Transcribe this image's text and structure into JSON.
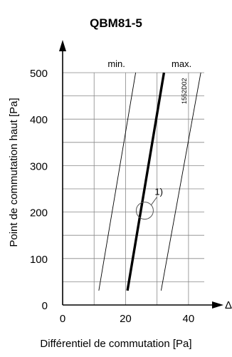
{
  "chart_data": {
    "type": "line",
    "title": "QBM81-5",
    "xlabel": "Différentiel de commutation [Pa]",
    "ylabel": "Point de commutation haut  [Pa]",
    "x_axis_symbol": "Δp",
    "xlim": [
      0,
      45
    ],
    "ylim": [
      0,
      500
    ],
    "xticks": [
      "0",
      "20",
      "40"
    ],
    "yticks": [
      "0",
      "100",
      "200",
      "300",
      "400",
      "500"
    ],
    "x_grid": [
      0,
      10,
      20,
      30,
      40
    ],
    "y_grid": [
      0,
      50,
      100,
      150,
      200,
      250,
      300,
      350,
      400,
      450,
      500
    ],
    "grid": true,
    "series": [
      {
        "name": "min.",
        "style": "thin",
        "x": [
          11.5,
          23.2
        ],
        "y": [
          31,
          500
        ]
      },
      {
        "name": "",
        "style": "thick",
        "x": [
          20.6,
          32.2
        ],
        "y": [
          31,
          500
        ]
      },
      {
        "name": "max.",
        "style": "thin",
        "x": [
          31.3,
          43.9
        ],
        "y": [
          31,
          500
        ]
      }
    ],
    "annotation": {
      "label": "1)",
      "x": 26.1,
      "y": 203
    },
    "figure_code": "1552D02"
  }
}
